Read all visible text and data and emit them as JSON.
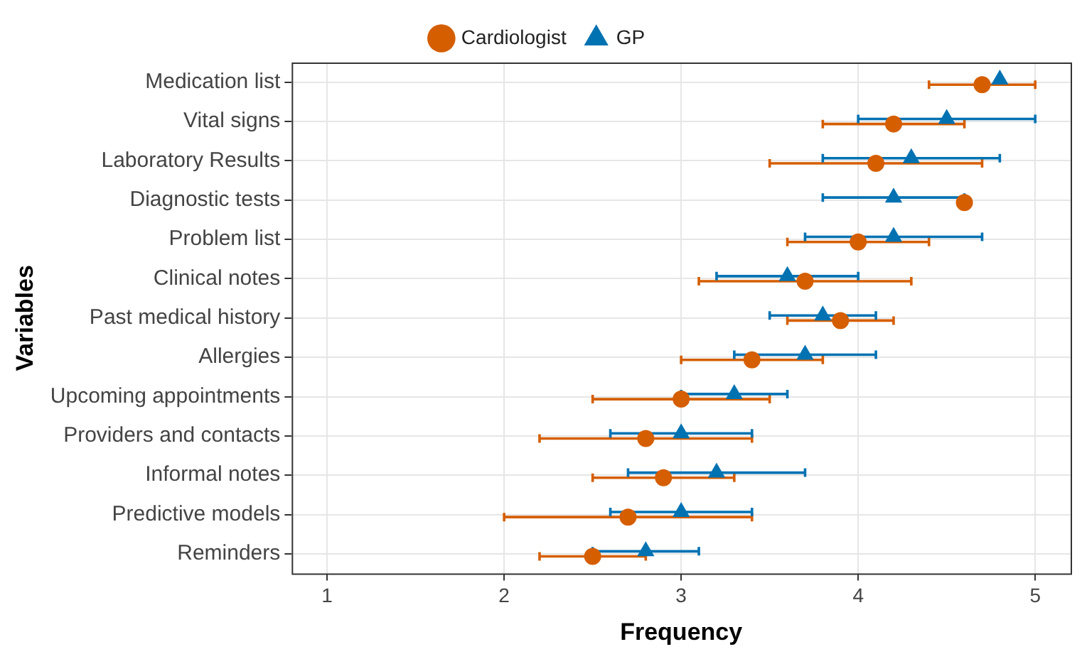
{
  "chart_data": {
    "type": "scatter",
    "orientation": "horizontal",
    "xlabel": "Frequency",
    "ylabel": "Variables",
    "categories": [
      "Medication list",
      "Vital signs",
      "Laboratory Results",
      "Diagnostic tests",
      "Problem list",
      "Clinical notes",
      "Past medical history",
      "Allergies",
      "Upcoming appointments",
      "Providers and contacts",
      "Informal notes",
      "Predictive models",
      "Reminders"
    ],
    "series": [
      {
        "name": "Cardiologist",
        "color": "#d55e00",
        "marker": "circle",
        "values": [
          4.7,
          4.2,
          4.1,
          4.6,
          4.0,
          3.7,
          3.9,
          3.4,
          3.0,
          2.8,
          2.9,
          2.7,
          2.5
        ],
        "errors": [
          [
            4.4,
            5.0
          ],
          [
            3.8,
            4.6
          ],
          [
            3.5,
            4.7
          ],
          null,
          [
            3.6,
            4.4
          ],
          [
            3.1,
            4.3
          ],
          [
            3.6,
            4.2
          ],
          [
            3.0,
            3.8
          ],
          [
            2.5,
            3.5
          ],
          [
            2.2,
            3.4
          ],
          [
            2.5,
            3.3
          ],
          [
            2.0,
            3.4
          ],
          [
            2.2,
            2.8
          ]
        ]
      },
      {
        "name": "GP",
        "color": "#0072b2",
        "marker": "triangle",
        "values": [
          4.8,
          4.5,
          4.3,
          4.2,
          4.2,
          3.6,
          3.8,
          3.7,
          3.3,
          3.0,
          3.2,
          3.0,
          2.8
        ],
        "errors": [
          null,
          [
            4.0,
            5.0
          ],
          [
            3.8,
            4.8
          ],
          [
            3.8,
            4.6
          ],
          [
            3.7,
            4.7
          ],
          [
            3.2,
            4.0
          ],
          [
            3.5,
            4.1
          ],
          [
            3.3,
            4.1
          ],
          [
            3.0,
            3.6
          ],
          [
            2.6,
            3.4
          ],
          [
            2.7,
            3.7
          ],
          [
            2.6,
            3.4
          ],
          [
            2.5,
            3.1
          ]
        ]
      }
    ],
    "xlim": [
      0.8,
      5.2
    ],
    "xticks": [
      1,
      2,
      3,
      4,
      5
    ],
    "grid": true,
    "legend": "top"
  }
}
